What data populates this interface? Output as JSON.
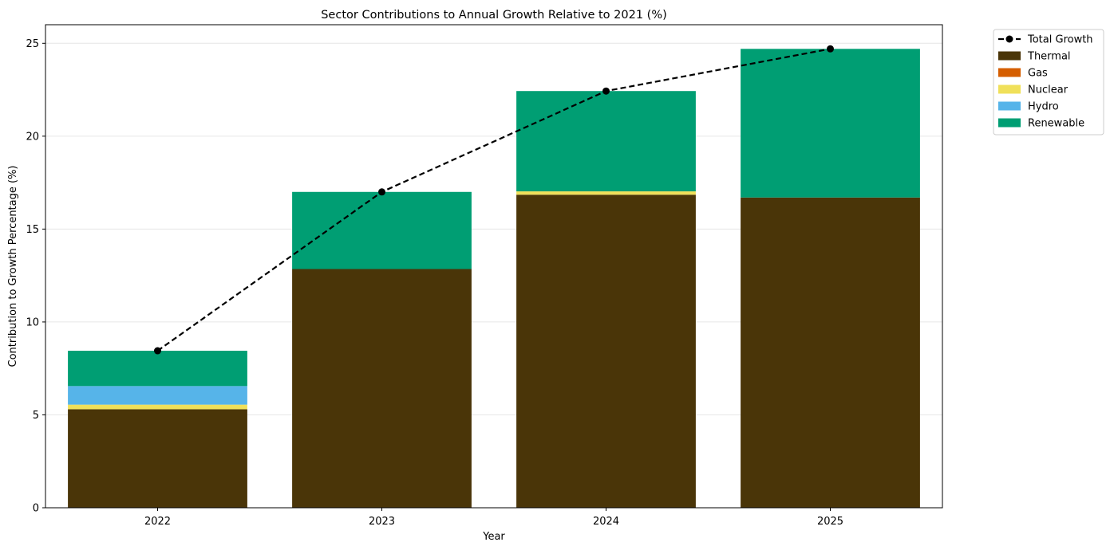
{
  "chart_data": {
    "type": "bar",
    "stacked": true,
    "title": "Sector Contributions to Annual Growth Relative to 2021 (%)",
    "xlabel": "Year",
    "ylabel": "Contribution to Growth Percentage (%)",
    "categories": [
      "2022",
      "2023",
      "2024",
      "2025"
    ],
    "ylim": [
      0,
      26
    ],
    "yticks": [
      0,
      5,
      10,
      15,
      20,
      25
    ],
    "grid": "y",
    "legend_position": "outside-top-right",
    "series": [
      {
        "name": "Thermal",
        "color": "#4a3508",
        "values": [
          5.3,
          12.85,
          16.85,
          16.7
        ]
      },
      {
        "name": "Gas",
        "color": "#d55e00",
        "values": [
          0.0,
          0.0,
          0.0,
          0.0
        ]
      },
      {
        "name": "Nuclear",
        "color": "#f0e05a",
        "values": [
          0.25,
          0.0,
          0.18,
          0.0
        ]
      },
      {
        "name": "Hydro",
        "color": "#56b4e9",
        "values": [
          1.0,
          0.0,
          0.0,
          0.0
        ]
      },
      {
        "name": "Renewable",
        "color": "#009e73",
        "values": [
          1.9,
          4.15,
          5.4,
          8.0
        ]
      }
    ],
    "line": {
      "name": "Total Growth",
      "color": "#000000",
      "style": "dashed",
      "marker": "circle",
      "values": [
        8.45,
        17.0,
        22.43,
        24.7
      ]
    }
  }
}
